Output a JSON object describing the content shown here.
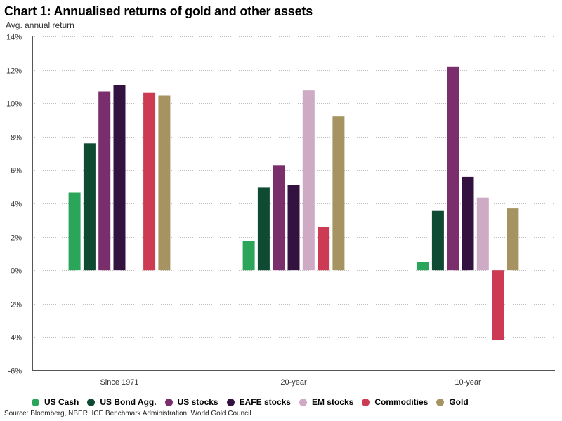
{
  "chart_data": {
    "type": "bar",
    "title": "Chart 1: Annualised returns of gold and other assets",
    "ylabel": "Avg. annual return",
    "categories": [
      "Since 1971",
      "20-year",
      "10-year"
    ],
    "series": [
      {
        "name": "US Cash",
        "color": "#2aa55a",
        "values": [
          4.65,
          1.75,
          0.5
        ]
      },
      {
        "name": "US Bond Agg.",
        "color": "#0f4a33",
        "values": [
          7.6,
          4.95,
          3.55
        ]
      },
      {
        "name": "US stocks",
        "color": "#7a2e6c",
        "values": [
          10.7,
          6.3,
          12.2
        ]
      },
      {
        "name": "EAFE stocks",
        "color": "#33123f",
        "values": [
          11.1,
          5.1,
          5.6
        ]
      },
      {
        "name": "EM stocks",
        "color": "#cfaac5",
        "values": [
          null,
          10.8,
          4.35
        ]
      },
      {
        "name": "Commodities",
        "color": "#cc3a54",
        "values": [
          10.65,
          2.6,
          -4.15
        ]
      },
      {
        "name": "Gold",
        "color": "#a69362",
        "values": [
          10.45,
          9.2,
          3.7
        ]
      }
    ],
    "ylim": [
      -6,
      14
    ],
    "yticks": [
      -6,
      -4,
      -2,
      0,
      2,
      4,
      6,
      8,
      10,
      12,
      14
    ],
    "ytick_labels": [
      "-6%",
      "-4%",
      "-2%",
      "0%",
      "2%",
      "4%",
      "6%",
      "8%",
      "10%",
      "12%",
      "14%"
    ],
    "grid": true,
    "legend_position": "bottom"
  },
  "source": "Source: Bloomberg, NBER, ICE Benchmark Administration, World Gold Council"
}
